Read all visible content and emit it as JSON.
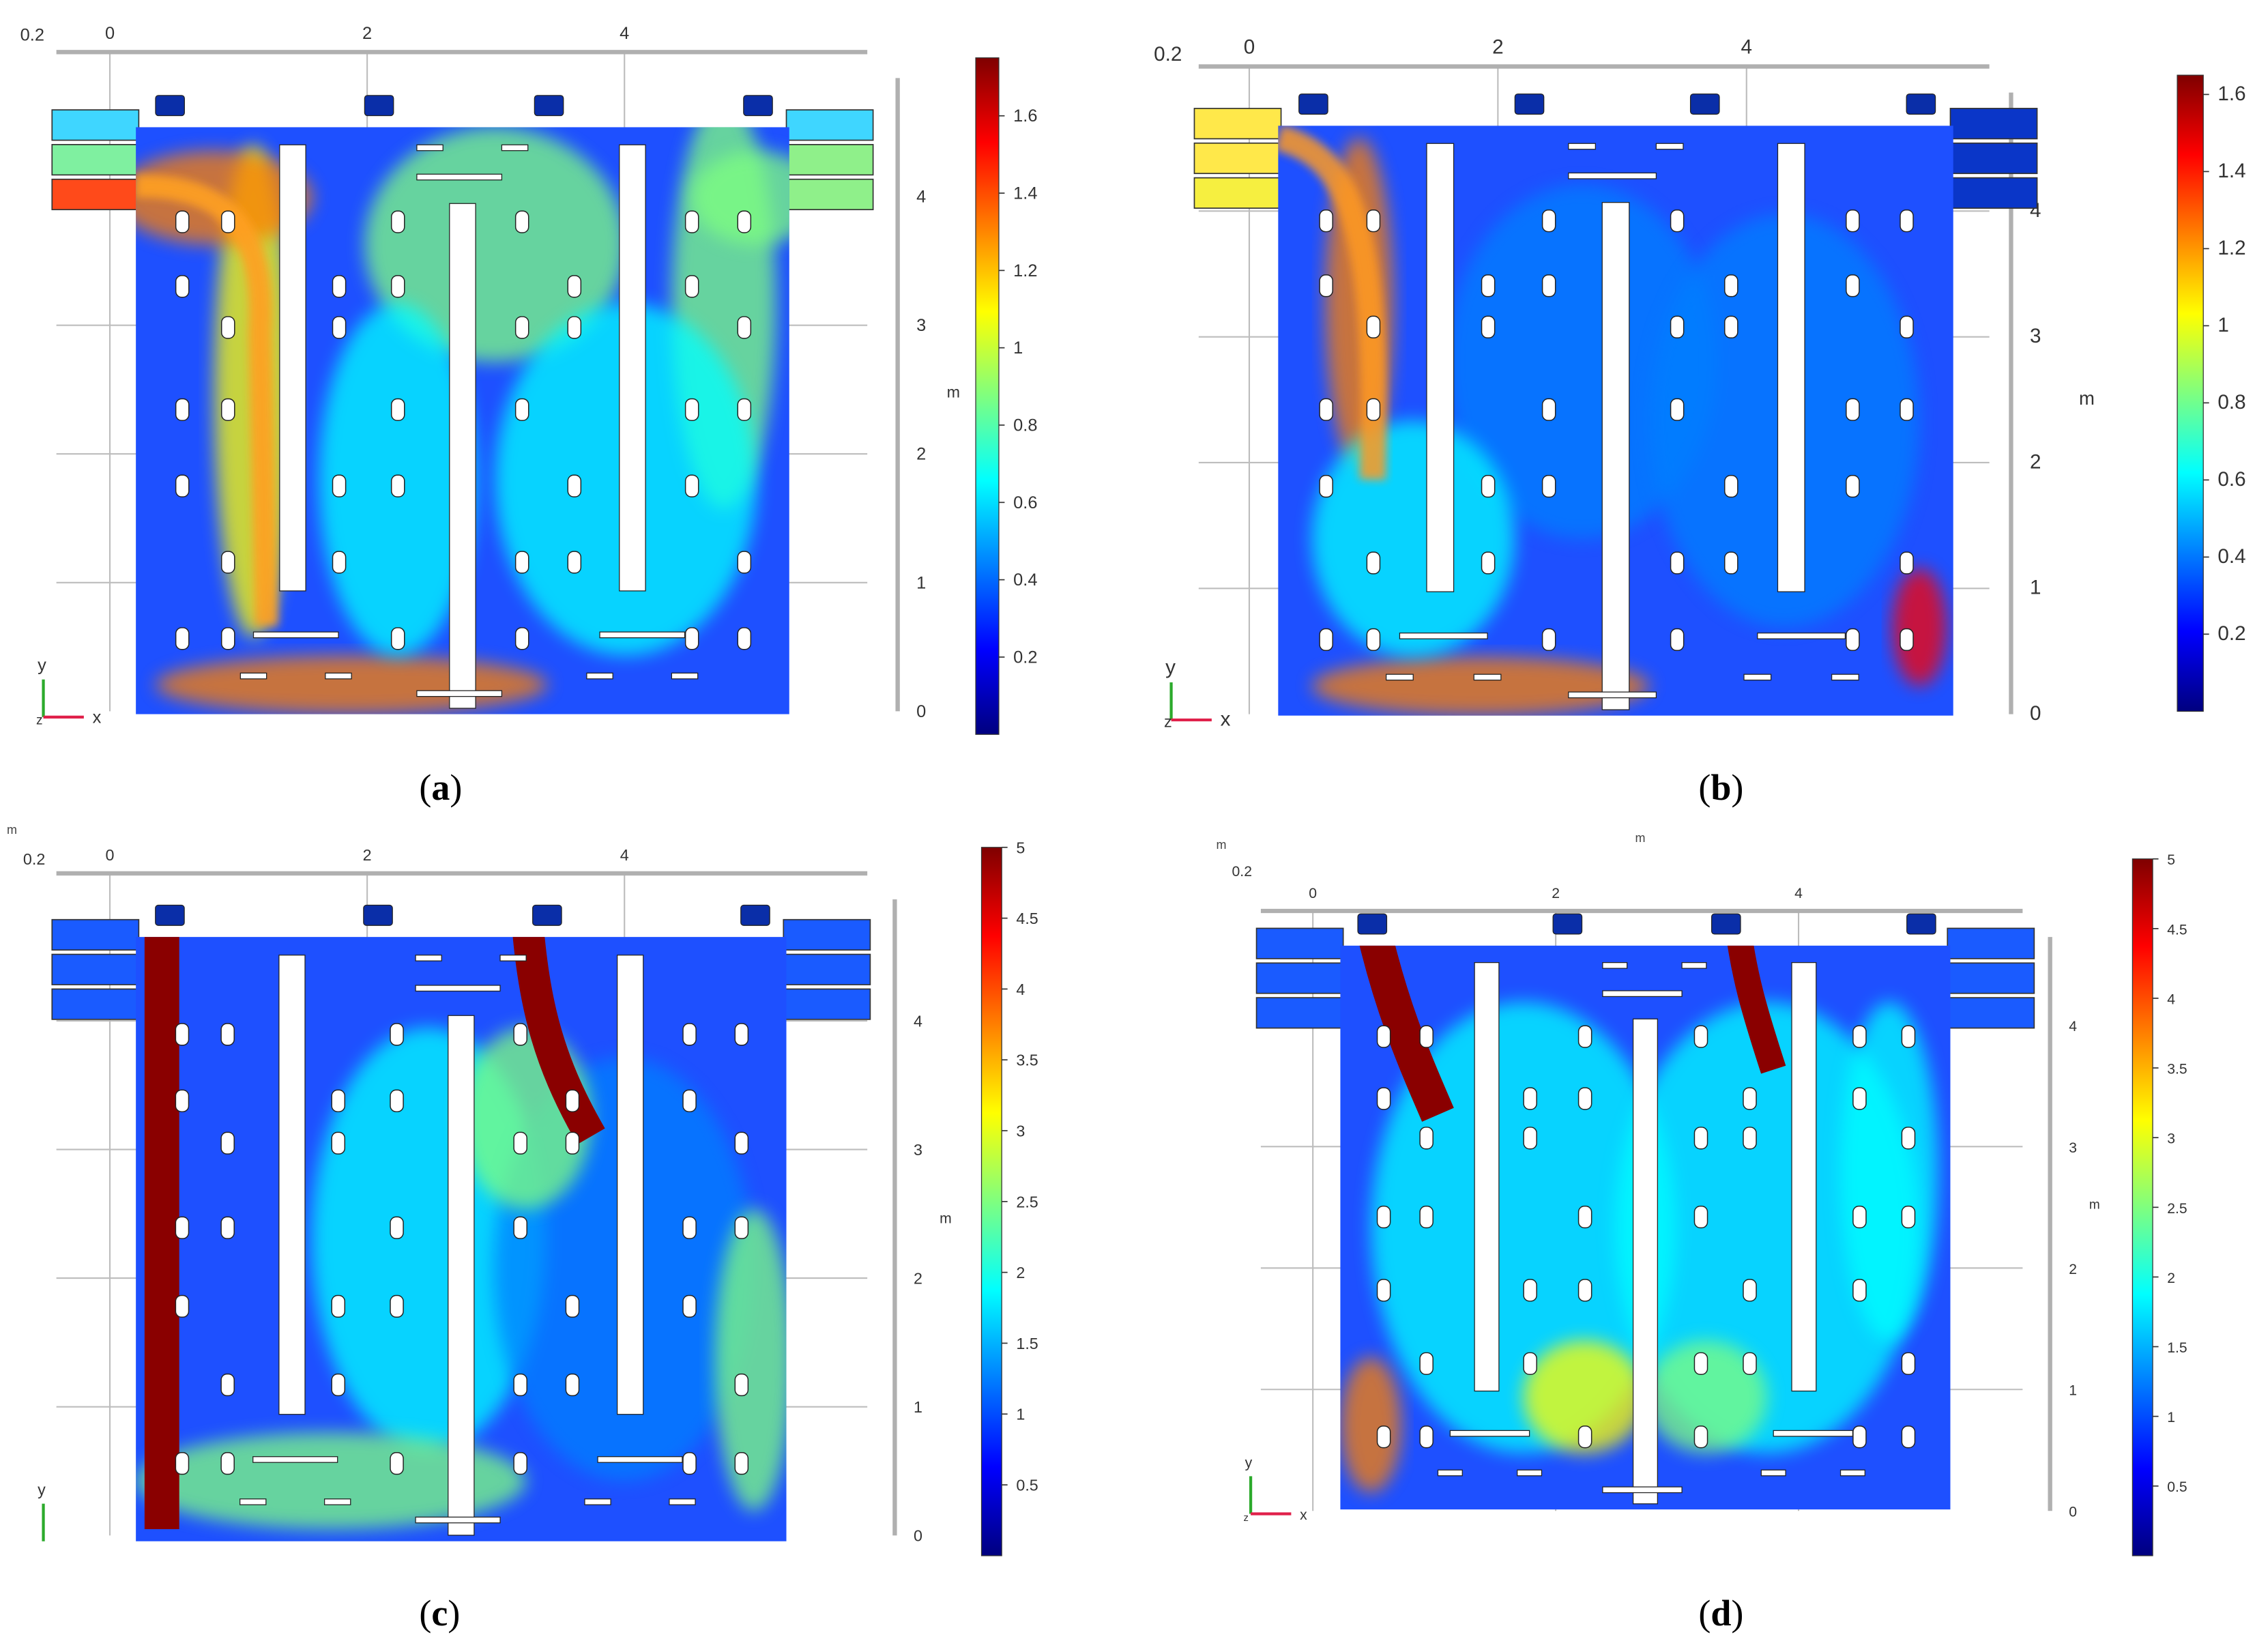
{
  "panels": [
    {
      "id": "a",
      "caption_letter": "a",
      "top_label": "0.2",
      "x_ticks": [
        "0",
        "2",
        "4"
      ],
      "y_ticks": [
        "0",
        "1",
        "2",
        "3",
        "4"
      ],
      "y_unit": "m",
      "axis_x": "x",
      "axis_y": "y",
      "axis_z": "z",
      "colorbar_ticks": [
        "0.2",
        "0.4",
        "0.6",
        "0.8",
        "1",
        "1.2",
        "1.4",
        "1.6"
      ],
      "colorbar_range": [
        0,
        1.75
      ]
    },
    {
      "id": "b",
      "caption_letter": "b",
      "top_label": "0.2",
      "x_ticks": [
        "0",
        "2",
        "4"
      ],
      "y_ticks": [
        "0",
        "1",
        "2",
        "3",
        "4"
      ],
      "y_unit": "m",
      "axis_x": "x",
      "axis_y": "y",
      "axis_z": "z",
      "colorbar_ticks": [
        "0.2",
        "0.4",
        "0.6",
        "0.8",
        "1",
        "1.2",
        "1.4",
        "1.6"
      ],
      "colorbar_range": [
        0,
        1.65
      ]
    },
    {
      "id": "c",
      "caption_letter": "c",
      "top_label": "0.2",
      "corner_mark": "m",
      "x_ticks": [
        "0",
        "2",
        "4"
      ],
      "y_ticks": [
        "0",
        "1",
        "2",
        "3",
        "4"
      ],
      "y_unit": "m",
      "axis_y": "y",
      "colorbar_ticks": [
        "0.5",
        "1",
        "1.5",
        "2",
        "2.5",
        "3",
        "3.5",
        "4",
        "4.5",
        "5"
      ],
      "colorbar_range": [
        0,
        5
      ]
    },
    {
      "id": "d",
      "caption_letter": "d",
      "top_label": "0.2",
      "corner_mark": "m",
      "top_unit": "m",
      "x_ticks": [
        "0",
        "2",
        "4"
      ],
      "y_ticks": [
        "0",
        "1",
        "2",
        "3",
        "4"
      ],
      "y_unit": "m",
      "axis_x": "x",
      "axis_y": "y",
      "axis_z": "z",
      "colorbar_ticks": [
        "0.5",
        "1",
        "1.5",
        "2",
        "2.5",
        "3",
        "3.5",
        "4",
        "4.5",
        "5"
      ],
      "colorbar_range": [
        0,
        5
      ]
    }
  ],
  "colors": {
    "jet": [
      "#00007f",
      "#0000ff",
      "#007fff",
      "#00ffff",
      "#7fff7f",
      "#ffff00",
      "#ff7f00",
      "#ff0000",
      "#7f0000"
    ],
    "background_flow": "#1e50ff",
    "obstacle": "#ffffff",
    "axis_gray": "#b0b0b0"
  }
}
